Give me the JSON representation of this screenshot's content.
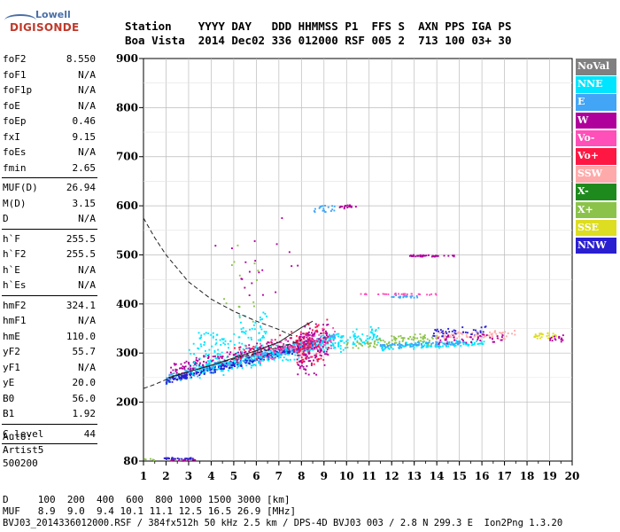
{
  "logo": {
    "top": "Lowell",
    "bottom": "DIGISONDE"
  },
  "header": {
    "row1": "Station    YYYY DAY   DDD HHMMSS P1  FFS S  AXN PPS IGA PS",
    "row2": "Boa Vista  2014 Dec02 336 012000 RSF 005 2  713 100 03+ 30"
  },
  "params": [
    {
      "label": "foF2",
      "value": "8.550"
    },
    {
      "label": "foF1",
      "value": "N/A"
    },
    {
      "label": "foF1p",
      "value": "N/A"
    },
    {
      "label": "foE",
      "value": "N/A"
    },
    {
      "label": "foEp",
      "value": "0.46"
    },
    {
      "label": "fxI",
      "value": "9.15"
    },
    {
      "label": "foEs",
      "value": "N/A"
    },
    {
      "label": "fmin",
      "value": "2.65"
    },
    {
      "sep": true
    },
    {
      "label": "MUF(D)",
      "value": "26.94"
    },
    {
      "label": "M(D)",
      "value": "3.15"
    },
    {
      "label": "D",
      "value": "N/A"
    },
    {
      "sep": true
    },
    {
      "label": "h`F",
      "value": "255.5"
    },
    {
      "label": "h`F2",
      "value": "255.5"
    },
    {
      "label": "h`E",
      "value": "N/A"
    },
    {
      "label": "h`Es",
      "value": "N/A"
    },
    {
      "sep": true
    },
    {
      "label": "hmF2",
      "value": "324.1"
    },
    {
      "label": "hmF1",
      "value": "N/A"
    },
    {
      "label": "hmE",
      "value": "110.0"
    },
    {
      "label": "yF2",
      "value": "55.7"
    },
    {
      "label": "yF1",
      "value": "N/A"
    },
    {
      "label": "yE",
      "value": "20.0"
    },
    {
      "label": "B0",
      "value": "56.0"
    },
    {
      "label": "B1",
      "value": "1.92"
    },
    {
      "sep": true
    },
    {
      "label": "C-level",
      "value": "44"
    },
    {
      "sep": true
    }
  ],
  "auto": {
    "line1": "Auto:",
    "line2": "Artist5",
    "line3": "500200"
  },
  "legend": [
    {
      "label": "NoVal",
      "color": "#808080"
    },
    {
      "label": "NNE",
      "color": "#00e5ff"
    },
    {
      "label": "E",
      "color": "#42a5f5"
    },
    {
      "label": "W",
      "color": "#b0009c"
    },
    {
      "label": "Vo-",
      "color": "#ff4fb8"
    },
    {
      "label": "Vo+",
      "color": "#ff1744"
    },
    {
      "label": "SSW",
      "color": "#ffaaaa"
    },
    {
      "label": "X-",
      "color": "#1e8a1e"
    },
    {
      "label": "X+",
      "color": "#8bc34a"
    },
    {
      "label": "SSE",
      "color": "#dddd22"
    },
    {
      "label": "NNW",
      "color": "#2a1fd0"
    }
  ],
  "bottom": {
    "row1": "D     100  200  400  600  800 1000 1500 3000 [km]",
    "row2": "MUF   8.9  9.0  9.4 10.1 11.1 12.5 16.5 26.9 [MHz]",
    "row3": "BVJ03_2014336012000.RSF / 384fx512h 50 kHz 2.5 km / DPS-4D BVJ03 003 / 2.8 N 299.3 E  Ion2Png 1.3.20"
  },
  "chart_data": {
    "type": "scatter",
    "xlim": [
      1,
      20
    ],
    "ylim": [
      80,
      900
    ],
    "x_ticks": [
      1,
      2,
      3,
      4,
      5,
      6,
      7,
      8,
      9,
      10,
      11,
      12,
      13,
      14,
      15,
      16,
      17,
      18,
      19,
      20
    ],
    "y_ticks": [
      80,
      200,
      300,
      400,
      500,
      600,
      700,
      800,
      900
    ],
    "grid": true,
    "traces": [
      {
        "name": "",
        "style": "dashed",
        "x": [
          1.0,
          1.5,
          2.0,
          3.0,
          4.0,
          5.0,
          6.0,
          7.0,
          7.6
        ],
        "y": [
          575,
          535,
          500,
          445,
          410,
          385,
          365,
          348,
          335
        ]
      },
      {
        "name": "",
        "style": "dashed",
        "x": [
          1.0,
          1.5,
          2.0,
          3.0,
          4.0,
          5.0,
          6.0,
          7.0,
          8.0
        ],
        "y": [
          228,
          236,
          246,
          262,
          275,
          288,
          300,
          312,
          325
        ]
      },
      {
        "name": "",
        "style": "solid",
        "x": [
          2.1,
          3.0,
          4.0,
          5.0,
          6.0,
          7.0,
          7.6,
          8.0,
          8.5
        ],
        "y": [
          250,
          262,
          275,
          290,
          305,
          322,
          340,
          352,
          365
        ]
      }
    ],
    "clusters": [
      {
        "color": "#42a5f5",
        "n": 420,
        "xmin": 2.0,
        "xmax": 9.5,
        "y0": 248,
        "slope": 11,
        "spread": 12
      },
      {
        "color": "#2a1fd0",
        "n": 260,
        "xmin": 2.0,
        "xmax": 8.5,
        "y0": 244,
        "slope": 11,
        "spread": 8
      },
      {
        "color": "#00e5ff",
        "n": 320,
        "xmin": 3.0,
        "xmax": 11.5,
        "y0": 262,
        "slope": 9,
        "spread": 22
      },
      {
        "color": "#b0009c",
        "n": 180,
        "xmin": 2.2,
        "xmax": 8.8,
        "y0": 265,
        "slope": 11,
        "spread": 15
      },
      {
        "color": "#ff4fb8",
        "n": 90,
        "xmin": 6.0,
        "xmax": 9.5,
        "y0": 300,
        "slope": 8,
        "spread": 30
      },
      {
        "color": "#ff1744",
        "n": 60,
        "xmin": 5.0,
        "xmax": 9.2,
        "y0": 300,
        "slope": 8,
        "spread": 25
      },
      {
        "color": "#8bc34a",
        "n": 70,
        "xmin": 10.0,
        "xmax": 14.0,
        "y0": 318,
        "slope": 2,
        "spread": 12
      },
      {
        "color": "#00e5ff",
        "n": 110,
        "xmin": 11.5,
        "xmax": 16.2,
        "y0": 312,
        "slope": 2,
        "spread": 8
      },
      {
        "color": "#42a5f5",
        "n": 80,
        "xmin": 11.5,
        "xmax": 15.2,
        "y0": 314,
        "slope": 2,
        "spread": 6
      },
      {
        "color": "#2a1fd0",
        "n": 45,
        "xmin": 13.8,
        "xmax": 16.2,
        "y0": 338,
        "slope": 3,
        "spread": 12
      },
      {
        "color": "#ffaaaa",
        "n": 70,
        "xmin": 14.0,
        "xmax": 17.5,
        "y0": 335,
        "slope": 1,
        "spread": 12
      },
      {
        "color": "#b0009c",
        "n": 40,
        "xmin": 14.0,
        "xmax": 17.0,
        "y0": 328,
        "slope": 1,
        "spread": 12
      },
      {
        "color": "#dddd22",
        "n": 30,
        "xmin": 18.3,
        "xmax": 19.3,
        "y0": 335,
        "slope": 0,
        "spread": 8
      },
      {
        "color": "#b0009c",
        "n": 15,
        "xmin": 19.0,
        "xmax": 19.6,
        "y0": 330,
        "slope": 0,
        "spread": 10
      },
      {
        "color": "#8bc34a",
        "n": 25,
        "xmin": 12.0,
        "xmax": 13.5,
        "y0": 330,
        "slope": 2,
        "spread": 8
      },
      {
        "color": "#b0009c",
        "n": 40,
        "xmin": 12.8,
        "xmax": 14.8,
        "y0": 498,
        "slope": 0,
        "spread": 2
      },
      {
        "color": "#ff4fb8",
        "n": 30,
        "xmin": 10.5,
        "xmax": 14.0,
        "y0": 420,
        "slope": 0,
        "spread": 2
      },
      {
        "color": "#42a5f5",
        "n": 20,
        "xmin": 12.0,
        "xmax": 13.2,
        "y0": 415,
        "slope": 0,
        "spread": 3
      },
      {
        "color": "#42a5f5",
        "n": 20,
        "xmin": 8.5,
        "xmax": 9.5,
        "y0": 593,
        "slope": 0,
        "spread": 8
      },
      {
        "color": "#b0009c",
        "n": 18,
        "xmin": 9.5,
        "xmax": 10.5,
        "y0": 598,
        "slope": 0,
        "spread": 4
      },
      {
        "color": "#2a1fd0",
        "n": 25,
        "xmin": 1.9,
        "xmax": 3.2,
        "y0": 85,
        "slope": 0,
        "spread": 2
      },
      {
        "color": "#b0009c",
        "n": 15,
        "xmin": 2.2,
        "xmax": 3.4,
        "y0": 82,
        "slope": 0,
        "spread": 2
      },
      {
        "color": "#8bc34a",
        "n": 6,
        "xmin": 1.0,
        "xmax": 1.5,
        "y0": 83,
        "slope": 0,
        "spread": 2
      },
      {
        "color": "#00e5ff",
        "n": 120,
        "xmin": 3.0,
        "xmax": 6.5,
        "y0": 300,
        "slope": 15,
        "spread": 45
      },
      {
        "color": "#b0009c",
        "n": 120,
        "xmin": 7.8,
        "xmax": 9.2,
        "y0": 300,
        "slope": 12,
        "spread": 60
      },
      {
        "color": "#ff1744",
        "n": 60,
        "xmin": 7.8,
        "xmax": 9.2,
        "y0": 310,
        "slope": 10,
        "spread": 55
      },
      {
        "color": "#8bc34a",
        "n": 15,
        "xmin": 4.5,
        "xmax": 6.5,
        "y0": 450,
        "slope": 0,
        "spread": 120
      },
      {
        "color": "#b0009c",
        "n": 20,
        "xmin": 3.5,
        "xmax": 8.0,
        "y0": 470,
        "slope": 0,
        "spread": 110
      }
    ]
  }
}
